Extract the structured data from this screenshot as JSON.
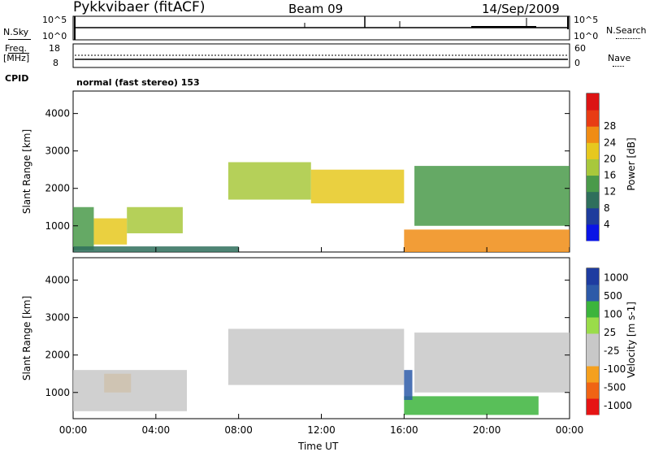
{
  "header": {
    "station": "Pykkvibaer (fitACF)",
    "beam": "Beam 09",
    "date": "14/Sep/2009"
  },
  "top_panels": {
    "nsky": {
      "label": "N.Sky",
      "ticks": [
        "10^5",
        "10^0"
      ]
    },
    "nsearch": {
      "label": "N.Search",
      "ticks": [
        "10^5",
        "10^0"
      ]
    },
    "freq": {
      "label_line1": "Freq.",
      "label_line2": "[MHz]",
      "ticks": [
        "18",
        "8"
      ]
    },
    "nave": {
      "label": "Nave",
      "ticks": [
        "60",
        "0"
      ]
    },
    "cpid": {
      "label": "CPID",
      "value": "normal (fast stereo) 153"
    }
  },
  "colors": {
    "power_scale": [
      "#0a14e6",
      "#1e3c9c",
      "#2f6f5c",
      "#4a9a4a",
      "#a8c83c",
      "#e6c81e",
      "#f08c14",
      "#e83c14",
      "#dc1414"
    ],
    "velocity_scale": [
      "#e61414",
      "#f06414",
      "#f5a01e",
      "#c8c8c8",
      "#c8c8c8",
      "#9adc4a",
      "#3cb43c",
      "#2d5aa8",
      "#1e3ca0"
    ]
  },
  "chart_data": [
    {
      "type": "heatmap",
      "name": "power",
      "ylabel": "Slant Range [km]",
      "xlabel": "",
      "yticks": [
        "1000",
        "2000",
        "3000",
        "4000"
      ],
      "ylim": [
        300,
        4600
      ],
      "xticks": [
        "00:00",
        "04:00",
        "08:00",
        "12:00",
        "16:00",
        "20:00",
        "00:00"
      ],
      "colorbar": {
        "label": "Power [dB]",
        "ticks": [
          "4",
          "8",
          "12",
          "16",
          "20",
          "24",
          "28"
        ]
      },
      "regions": [
        {
          "t0": 0.0,
          "t1": 1.0,
          "r0": 350,
          "r1": 1500,
          "value": 12
        },
        {
          "t0": 1.0,
          "t1": 2.6,
          "r0": 500,
          "r1": 1200,
          "value": 20
        },
        {
          "t0": 2.6,
          "t1": 5.3,
          "r0": 800,
          "r1": 1500,
          "value": 16
        },
        {
          "t0": 0.0,
          "t1": 8.0,
          "r0": 300,
          "r1": 450,
          "value": 8
        },
        {
          "t0": 7.5,
          "t1": 11.5,
          "r0": 1700,
          "r1": 2700,
          "value": 16
        },
        {
          "t0": 11.5,
          "t1": 16.0,
          "r0": 1600,
          "r1": 2500,
          "value": 20
        },
        {
          "t0": 16.0,
          "t1": 24.0,
          "r0": 300,
          "r1": 900,
          "value": 24
        },
        {
          "t0": 16.5,
          "t1": 24.0,
          "r0": 1000,
          "r1": 2600,
          "value": 12
        }
      ]
    },
    {
      "type": "heatmap",
      "name": "velocity",
      "ylabel": "Slant Range [km]",
      "xlabel": "Time UT",
      "yticks": [
        "1000",
        "2000",
        "3000",
        "4000"
      ],
      "ylim": [
        300,
        4600
      ],
      "xticks": [
        "00:00",
        "04:00",
        "08:00",
        "12:00",
        "16:00",
        "20:00",
        "00:00"
      ],
      "colorbar": {
        "label": "Velocity [m s-1]",
        "ticks": [
          "1000",
          "500",
          "100",
          "25",
          "-25",
          "-100",
          "-500",
          "-1000"
        ]
      },
      "regions": [
        {
          "t0": 1.5,
          "t1": 2.8,
          "r0": 1000,
          "r1": 1500,
          "value": -400
        },
        {
          "t0": 0.0,
          "t1": 5.5,
          "r0": 500,
          "r1": 1600,
          "value": 0
        },
        {
          "t0": 7.5,
          "t1": 16.0,
          "r0": 1200,
          "r1": 2700,
          "value": 0
        },
        {
          "t0": 16.0,
          "t1": 22.5,
          "r0": 400,
          "r1": 900,
          "value": 150
        },
        {
          "t0": 16.0,
          "t1": 16.4,
          "r0": 800,
          "r1": 1600,
          "value": 700
        },
        {
          "t0": 16.5,
          "t1": 24.0,
          "r0": 1000,
          "r1": 2600,
          "value": 0
        }
      ]
    }
  ]
}
